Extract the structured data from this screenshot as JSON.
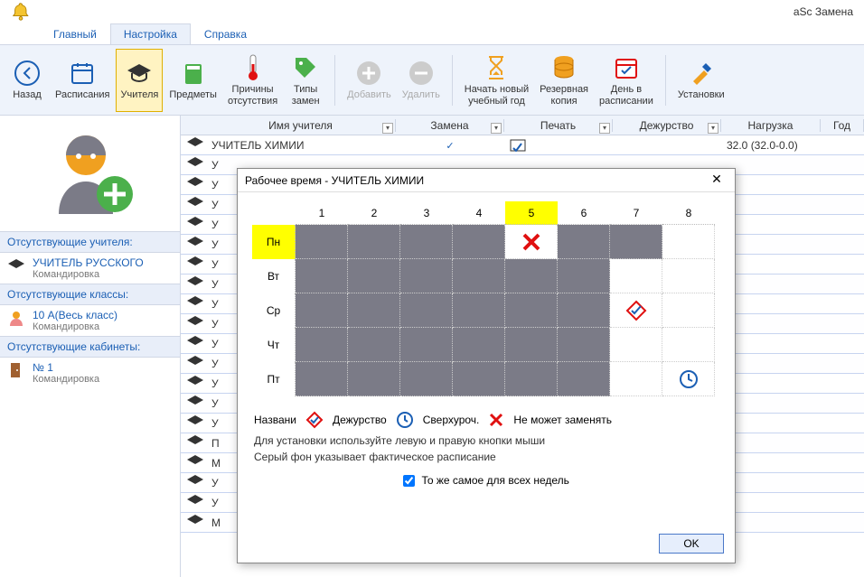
{
  "app_title": "aSc Замена",
  "menu": {
    "tabs": [
      "Главный",
      "Настройка",
      "Справка"
    ],
    "active": 1
  },
  "ribbon": {
    "back": "Назад",
    "schedules": "Расписания",
    "teachers": "Учителя",
    "subjects": "Предметы",
    "absence_reasons": "Причины\nотсутствия",
    "sub_types": "Типы\nзамен",
    "add": "Добавить",
    "delete": "Удалить",
    "new_year": "Начать новый\nучебный год",
    "reserve": "Резервная\nкопия",
    "day_in_schedule": "День в\nрасписании",
    "settings": "Установки"
  },
  "sidebar": {
    "absent_teachers_h": "Отсутствующие учителя:",
    "absent_classes_h": "Отсутствующие классы:",
    "absent_rooms_h": "Отсутствующие  кабинеты:",
    "teacher": {
      "name": "УЧИТЕЛЬ РУССКОГО",
      "reason": "Командировка"
    },
    "klass": {
      "name": "10 А(Весь класс)",
      "reason": "Командировка"
    },
    "room": {
      "name": "№ 1",
      "reason": "Командировка"
    }
  },
  "grid": {
    "cols": {
      "name": "Имя учителя",
      "sub": "Замена",
      "print": "Печать",
      "duty": "Дежурство",
      "load": "Нагрузка",
      "year": "Год"
    },
    "row1": {
      "name": "УЧИТЕЛЬ ХИМИИ",
      "load": "32.0 (32.0-0.0)"
    },
    "widths": {
      "icon": 28,
      "name": 210,
      "sub": 120,
      "print": 120,
      "duty": 120,
      "load": 110,
      "year": 48
    },
    "row_stubs": [
      "У",
      "У",
      "У",
      "У",
      "У",
      "У",
      "У",
      "У",
      "У",
      "У",
      "У",
      "У",
      "У",
      "У",
      "П",
      "М",
      "У",
      "У",
      "М"
    ]
  },
  "dialog": {
    "title": "Рабочее время - УЧИТЕЛЬ ХИМИИ",
    "cols": [
      "1",
      "2",
      "3",
      "4",
      "5",
      "6",
      "7",
      "8"
    ],
    "hl_col": 4,
    "days": [
      "Пн",
      "Вт",
      "Ср",
      "Чт",
      "Пт"
    ],
    "hl_day": 0,
    "cells": [
      [
        "b",
        "b",
        "b",
        "b",
        "x",
        "b",
        "b",
        ""
      ],
      [
        "b",
        "b",
        "b",
        "b",
        "b",
        "b",
        "",
        ""
      ],
      [
        "b",
        "b",
        "b",
        "b",
        "b",
        "b",
        "duty",
        ""
      ],
      [
        "b",
        "b",
        "b",
        "b",
        "b",
        "b",
        "",
        ""
      ],
      [
        "b",
        "b",
        "b",
        "b",
        "b",
        "b",
        "",
        "clock"
      ]
    ],
    "legend": {
      "name_lbl": "Названи",
      "duty": "Дежурство",
      "over": "Сверхуроч.",
      "cannot": "Не может заменять"
    },
    "hint1": "Для установки используйте левую и правую кнопки мыши",
    "hint2": "Серый фон указывает фактическое расписание",
    "same_week": "То же самое для всех недель",
    "ok": "OK"
  },
  "colors": {
    "busy": "#7b7b87",
    "hl": "#ffff00",
    "ribbon_bg": "#eef3fb",
    "link": "#1b5fb4",
    "red": "#e01010",
    "blue": "#1b5fb4",
    "green": "#4bb04b",
    "orange": "#f0a020"
  }
}
